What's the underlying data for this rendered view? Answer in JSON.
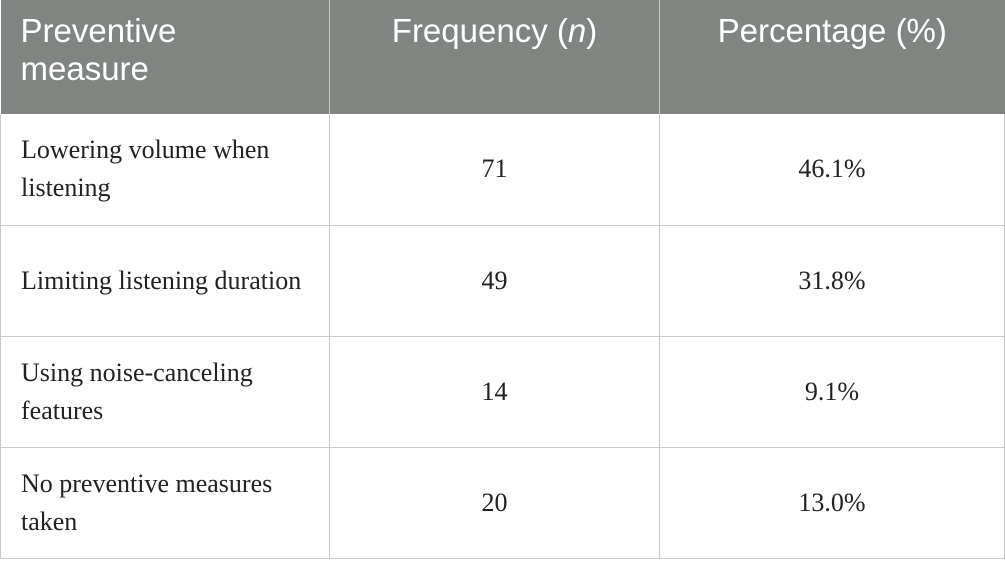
{
  "table": {
    "headers": {
      "measure": "Preventive measure",
      "frequency_prefix": "Frequency (",
      "frequency_italic": "n",
      "frequency_suffix": ")",
      "percentage": "Percentage (%)"
    },
    "rows": [
      {
        "measure": "Lowering volume when listening",
        "frequency": "71",
        "percentage": "46.1%"
      },
      {
        "measure": "Limiting listening duration",
        "frequency": "49",
        "percentage": "31.8%"
      },
      {
        "measure": "Using noise-canceling features",
        "frequency": "14",
        "percentage": "9.1%"
      },
      {
        "measure": "No preventive measures taken",
        "frequency": "20",
        "percentage": "13.0%"
      }
    ],
    "colors": {
      "header_background": "#808581",
      "header_text": "#ffffff",
      "border": "#c9c9c9"
    }
  }
}
